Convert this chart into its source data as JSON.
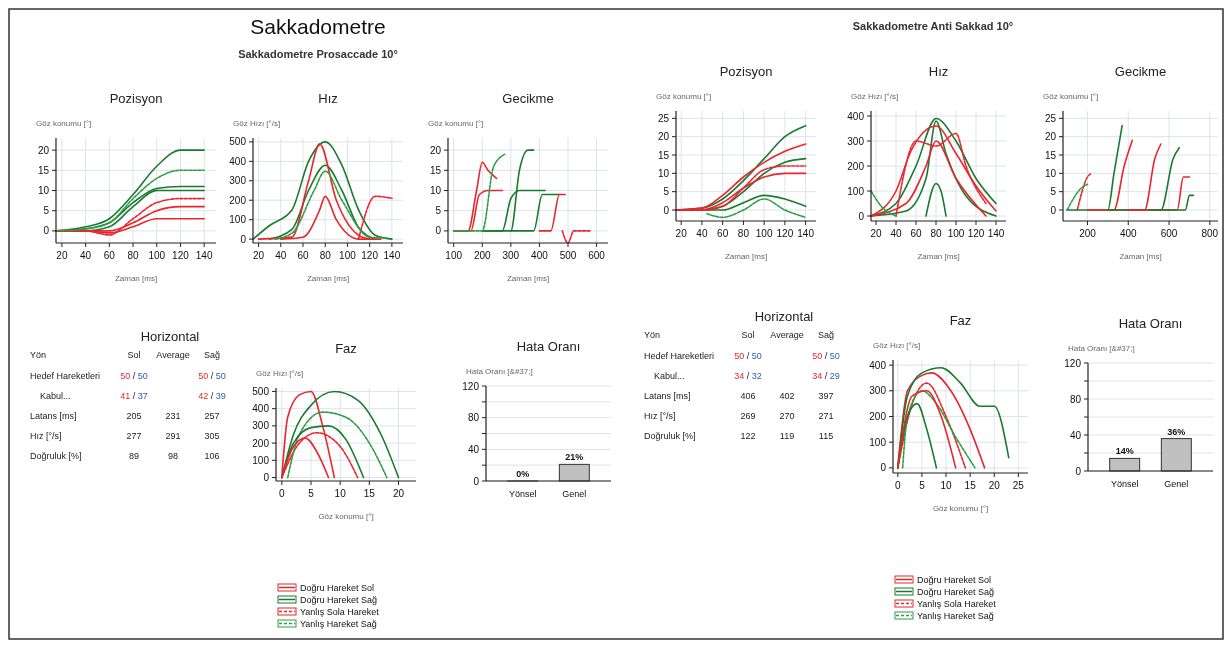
{
  "chart_data": [
    {
      "type": "other",
      "title": "Sakkadometre",
      "subtitle": "Sakkadometre Prosaccade 10°"
    },
    {
      "type": "line",
      "title": "Pozisyon",
      "xlabel": "Zaman [ms]",
      "ylabel": "Göz konumu [°]",
      "xlim": [
        15,
        150
      ],
      "xticks": [
        20,
        40,
        60,
        80,
        100,
        120,
        140
      ],
      "ylim": [
        -3,
        23
      ],
      "yticks": [
        0,
        5,
        10,
        15,
        20
      ],
      "grid": true,
      "series": [
        {
          "color": "#1a7a30",
          "x": [
            15,
            40,
            60,
            80,
            100,
            120,
            140
          ],
          "values": [
            0,
            1,
            3,
            9,
            16,
            20,
            20
          ]
        },
        {
          "color": "#1a7a30",
          "x": [
            15,
            40,
            60,
            80,
            100,
            120,
            140
          ],
          "values": [
            0,
            0.5,
            2,
            7,
            10.5,
            11,
            11
          ]
        },
        {
          "color": "#1a7a30",
          "x": [
            15,
            40,
            60,
            80,
            100,
            120,
            140
          ],
          "values": [
            0,
            0,
            1,
            6,
            10,
            10,
            10
          ]
        },
        {
          "color": "#e8262d",
          "x": [
            15,
            40,
            60,
            80,
            100,
            120,
            140
          ],
          "values": [
            0,
            0,
            0,
            2,
            5,
            6,
            6
          ]
        },
        {
          "color": "#e8262d",
          "x": [
            15,
            40,
            60,
            80,
            100,
            120,
            140
          ],
          "values": [
            0,
            0,
            -0.5,
            1,
            3,
            3,
            3
          ]
        },
        {
          "color": "#e8262d",
          "line_style": "dashed",
          "x": [
            15,
            40,
            60,
            80,
            100,
            120,
            140
          ],
          "values": [
            0,
            0,
            -1,
            3,
            7,
            8,
            8
          ]
        },
        {
          "color": "#2e9e45",
          "line_style": "dashed",
          "x": [
            15,
            40,
            60,
            80,
            100,
            120,
            140
          ],
          "values": [
            0,
            0.5,
            2,
            8,
            13,
            15,
            15
          ]
        }
      ]
    },
    {
      "type": "line",
      "title": "Hız",
      "xlabel": "Zaman [ms]",
      "ylabel": "Göz Hızı [°/s]",
      "xlim": [
        15,
        150
      ],
      "xticks": [
        20,
        40,
        60,
        80,
        100,
        120,
        140
      ],
      "ylim": [
        -20,
        520
      ],
      "yticks": [
        0,
        100,
        200,
        300,
        400,
        500
      ],
      "grid": true,
      "series": [
        {
          "color": "#1a7a30",
          "x": [
            15,
            30,
            50,
            65,
            80,
            95,
            110,
            125,
            140
          ],
          "values": [
            0,
            70,
            150,
            400,
            500,
            380,
            150,
            20,
            0
          ]
        },
        {
          "color": "#1a7a30",
          "x": [
            30,
            50,
            65,
            80,
            95,
            110,
            125
          ],
          "values": [
            0,
            50,
            250,
            380,
            250,
            60,
            0
          ]
        },
        {
          "color": "#e8262d",
          "x": [
            20,
            50,
            65,
            75,
            90,
            110,
            120
          ],
          "values": [
            0,
            10,
            300,
            490,
            200,
            20,
            0
          ]
        },
        {
          "color": "#e8262d",
          "x": [
            40,
            60,
            75,
            80,
            90,
            110,
            130
          ],
          "values": [
            0,
            10,
            150,
            220,
            100,
            0,
            0
          ]
        },
        {
          "color": "#e8262d",
          "line_style": "dashed",
          "x": [
            110,
            125,
            140
          ],
          "values": [
            0,
            220,
            210
          ]
        },
        {
          "color": "#2e9e45",
          "line_style": "dashed",
          "x": [
            35,
            50,
            70,
            80,
            95,
            120,
            135
          ],
          "values": [
            0,
            30,
            250,
            350,
            200,
            10,
            5
          ]
        }
      ]
    },
    {
      "type": "line",
      "title": "Gecikme",
      "xlabel": "Zaman [ms]",
      "ylabel": "Göz konumu [°]",
      "xlim": [
        80,
        640
      ],
      "xticks": [
        100,
        200,
        300,
        400,
        500,
        600
      ],
      "ylim": [
        -3,
        23
      ],
      "yticks": [
        0,
        5,
        10,
        15,
        20
      ],
      "grid": true,
      "series": [
        {
          "color": "#e8262d",
          "x": [
            100,
            150,
            180,
            200,
            220,
            250
          ],
          "values": [
            0,
            0,
            10,
            17,
            15,
            13
          ]
        },
        {
          "color": "#e8262d",
          "x": [
            100,
            160,
            190,
            220,
            270
          ],
          "values": [
            0,
            0,
            9,
            10,
            10
          ]
        },
        {
          "color": "#1a7a30",
          "x": [
            200,
            300,
            330,
            360,
            380
          ],
          "values": [
            0,
            0,
            15,
            20,
            20
          ]
        },
        {
          "color": "#1a7a30",
          "x": [
            200,
            270,
            300,
            330,
            420
          ],
          "values": [
            0,
            0,
            8,
            10,
            10
          ]
        },
        {
          "color": "#1a7a30",
          "x": [
            300,
            380,
            410,
            470
          ],
          "values": [
            0,
            0,
            9,
            9
          ]
        },
        {
          "color": "#e8262d",
          "x": [
            400,
            440,
            470,
            490
          ],
          "values": [
            0,
            0,
            9,
            9
          ]
        },
        {
          "color": "#e8262d",
          "line_style": "dashed",
          "x": [
            480,
            500,
            520,
            580
          ],
          "values": [
            0,
            -3,
            0,
            0
          ]
        },
        {
          "color": "#2e9e45",
          "line_style": "dashed",
          "x": [
            100,
            200,
            240,
            280
          ],
          "values": [
            0,
            0,
            16,
            19
          ]
        }
      ]
    },
    {
      "type": "other",
      "title": "Horizontal",
      "ylabel": "Yön",
      "categories": [
        "Sol",
        "Average",
        "Sağ"
      ],
      "y_categories": [
        "Hedef Hareketleri",
        "Kabul...",
        "Latans [ms]",
        "Hız [°/s]",
        "Doğruluk [%]"
      ],
      "cell_labels": [
        [
          "50 / 50",
          null,
          "50 / 50"
        ],
        [
          "41 / 37",
          null,
          "42 / 39"
        ],
        [
          "205",
          "231",
          "257"
        ],
        [
          "277",
          "291",
          "305"
        ],
        [
          "89",
          "98",
          "106"
        ]
      ]
    },
    {
      "type": "line",
      "title": "Faz",
      "xlabel": "Göz konumu [°]",
      "ylabel": "Göz Hızı [°/s]",
      "xlim": [
        -1,
        23
      ],
      "xticks": [
        0,
        5,
        10,
        15,
        20
      ],
      "ylim": [
        -20,
        520
      ],
      "yticks": [
        0,
        100,
        200,
        300,
        400,
        500
      ],
      "grid": true,
      "legend": "bottom",
      "series": [
        {
          "name": "Doğru Hareket Sol",
          "color": "#e8262d",
          "x": [
            0,
            1,
            3,
            5,
            7,
            9
          ],
          "values": [
            0,
            350,
            480,
            500,
            300,
            0
          ]
        },
        {
          "name": "Doğru Hareket Sağ",
          "color": "#1a7a30",
          "x": [
            0,
            2,
            5,
            9,
            13,
            17,
            20
          ],
          "values": [
            0,
            250,
            420,
            500,
            450,
            250,
            0
          ]
        },
        {
          "name": "Yanlış Sola Hareket",
          "color": "#e8262d",
          "line_style": "dashed",
          "x": [
            0,
            3,
            6,
            10,
            13
          ],
          "values": [
            0,
            200,
            260,
            180,
            0
          ]
        },
        {
          "name": "Yanlış Hareket Sağ",
          "color": "#2e9e45",
          "line_style": "dashed",
          "x": [
            1,
            3,
            7,
            11,
            15,
            18
          ],
          "values": [
            0,
            250,
            380,
            350,
            200,
            0
          ]
        },
        {
          "color": "#1a7a30",
          "x": [
            0,
            2,
            5,
            8,
            11,
            14
          ],
          "values": [
            0,
            200,
            290,
            300,
            220,
            0
          ]
        },
        {
          "color": "#e8262d",
          "x": [
            0,
            2,
            4,
            6,
            8
          ],
          "values": [
            0,
            180,
            230,
            150,
            0
          ]
        }
      ]
    },
    {
      "type": "bar",
      "title": "Hata Oranı",
      "ylabel": "Hata Oranı [&#37;]",
      "categories": [
        "Yönsel",
        "Genel"
      ],
      "values": [
        0,
        21
      ],
      "value_labels": [
        "0%",
        "21%"
      ],
      "color": "#c0c0c0",
      "ylim": [
        0,
        120
      ],
      "yticks": [
        0,
        {
          "value": 20,
          "label": null
        },
        40,
        {
          "value": 60,
          "label": null
        },
        80,
        {
          "value": 100,
          "label": null
        },
        120
      ],
      "grid": "y"
    },
    {
      "type": "other",
      "subtitle": "Sakkadometre Anti Sakkad 10°"
    },
    {
      "type": "line",
      "title": "Pozisyon",
      "xlabel": "Zaman [ms]",
      "ylabel": "Göz konumu [°]",
      "xlim": [
        15,
        150
      ],
      "xticks": [
        20,
        40,
        60,
        80,
        100,
        120,
        140
      ],
      "ylim": [
        -3,
        27
      ],
      "yticks": [
        0,
        5,
        10,
        15,
        20,
        25
      ],
      "grid": true,
      "series": [
        {
          "color": "#1a7a30",
          "x": [
            15,
            40,
            60,
            80,
            100,
            120,
            140
          ],
          "values": [
            0,
            0.5,
            3,
            8,
            14,
            20,
            23
          ]
        },
        {
          "color": "#1a7a30",
          "x": [
            15,
            40,
            60,
            80,
            100,
            120,
            140
          ],
          "values": [
            0,
            0,
            1,
            5,
            10,
            13,
            14
          ]
        },
        {
          "color": "#1a7a30",
          "x": [
            15,
            40,
            60,
            80,
            100,
            120,
            140
          ],
          "values": [
            0,
            0,
            0,
            2,
            4,
            3,
            1
          ]
        },
        {
          "color": "#e8262d",
          "x": [
            15,
            40,
            60,
            80,
            100,
            120,
            140
          ],
          "values": [
            0,
            0.5,
            4,
            9,
            13,
            16,
            18
          ]
        },
        {
          "color": "#e8262d",
          "x": [
            15,
            40,
            60,
            80,
            100,
            120,
            140
          ],
          "values": [
            0,
            0,
            2,
            6,
            9,
            10,
            10
          ]
        },
        {
          "color": "#e8262d",
          "line_style": "dashed",
          "x": [
            15,
            40,
            60,
            80,
            100,
            120,
            140
          ],
          "values": [
            0,
            0,
            1,
            6,
            11,
            12,
            12
          ]
        },
        {
          "color": "#2e9e45",
          "line_style": "dashed",
          "x": [
            45,
            60,
            80,
            100,
            120,
            140
          ],
          "values": [
            -1,
            -2,
            0,
            3,
            0,
            -2
          ]
        }
      ]
    },
    {
      "type": "line",
      "title": "Hız",
      "xlabel": "Zaman [ms]",
      "ylabel": "Göz Hızı [°/s]",
      "xlim": [
        15,
        150
      ],
      "xticks": [
        20,
        40,
        60,
        80,
        100,
        120,
        140
      ],
      "ylim": [
        -20,
        420
      ],
      "yticks": [
        0,
        100,
        200,
        300,
        400
      ],
      "grid": true,
      "series": [
        {
          "color": "#1a7a30",
          "x": [
            15,
            40,
            60,
            80,
            100,
            120,
            140
          ],
          "values": [
            0,
            50,
            200,
            390,
            300,
            150,
            50
          ]
        },
        {
          "color": "#1a7a30",
          "x": [
            15,
            50,
            70,
            80,
            90,
            110,
            140
          ],
          "values": [
            0,
            20,
            150,
            380,
            250,
            80,
            0
          ]
        },
        {
          "color": "#1a7a30",
          "x": [
            70,
            80,
            85,
            90
          ],
          "values": [
            0,
            130,
            100,
            0
          ]
        },
        {
          "color": "#e8262d",
          "x": [
            15,
            40,
            55,
            80,
            100,
            120,
            140
          ],
          "values": [
            0,
            100,
            260,
            360,
            250,
            120,
            20
          ]
        },
        {
          "color": "#e8262d",
          "x": [
            15,
            50,
            70,
            80,
            100,
            130
          ],
          "values": [
            0,
            50,
            200,
            300,
            150,
            0
          ]
        },
        {
          "color": "#e8262d",
          "line_style": "dashed",
          "x": [
            40,
            60,
            80,
            100,
            110,
            130
          ],
          "values": [
            0,
            300,
            280,
            330,
            200,
            50
          ]
        },
        {
          "color": "#2e9e45",
          "line_style": "dashed",
          "x": [
            15,
            25,
            40
          ],
          "values": [
            100,
            40,
            0
          ]
        }
      ]
    },
    {
      "type": "line",
      "title": "Gecikme",
      "xlabel": "Zaman [ms]",
      "ylabel": "Göz konumu [°]",
      "xlim": [
        80,
        840
      ],
      "xticks": [
        200,
        400,
        600,
        800
      ],
      "ylim": [
        -3,
        27
      ],
      "yticks": [
        0,
        5,
        10,
        15,
        20,
        25
      ],
      "grid": true,
      "series": [
        {
          "color": "#1a7a30",
          "x": [
            100,
            300,
            330,
            370
          ],
          "values": [
            0,
            0,
            10,
            23
          ]
        },
        {
          "color": "#e8262d",
          "x": [
            200,
            330,
            380,
            420
          ],
          "values": [
            0,
            0,
            12,
            19
          ]
        },
        {
          "color": "#e8262d",
          "x": [
            300,
            480,
            530,
            560
          ],
          "values": [
            0,
            0,
            14,
            18
          ]
        },
        {
          "color": "#1a7a30",
          "x": [
            300,
            560,
            620,
            650
          ],
          "values": [
            0,
            0,
            14,
            17
          ]
        },
        {
          "color": "#e8262d",
          "x": [
            400,
            640,
            670,
            700
          ],
          "values": [
            0,
            0,
            9,
            9
          ]
        },
        {
          "color": "#1a7a30",
          "x": [
            500,
            680,
            700,
            720
          ],
          "values": [
            0,
            0,
            4,
            4
          ]
        },
        {
          "color": "#e8262d",
          "line_style": "dashed",
          "x": [
            150,
            200,
            220
          ],
          "values": [
            0,
            9,
            10
          ]
        },
        {
          "color": "#2e9e45",
          "line_style": "dashed",
          "x": [
            100,
            170,
            200
          ],
          "values": [
            0,
            6,
            7
          ]
        }
      ]
    },
    {
      "type": "other",
      "title": "Horizontal",
      "ylabel": "Yön",
      "categories": [
        "Sol",
        "Average",
        "Sağ"
      ],
      "y_categories": [
        "Hedef Hareketleri",
        "Kabul...",
        "Latans [ms]",
        "Hız [°/s]",
        "Doğruluk [%]"
      ],
      "cell_labels": [
        [
          "50 / 50",
          null,
          "50 / 50"
        ],
        [
          "34 / 32",
          null,
          "34 / 29"
        ],
        [
          "406",
          "402",
          "397"
        ],
        [
          "269",
          "270",
          "271"
        ],
        [
          "122",
          "119",
          "115"
        ]
      ]
    },
    {
      "type": "line",
      "title": "Faz",
      "xlabel": "Göz konumu [°]",
      "ylabel": "Göz Hızı [°/s]",
      "xlim": [
        -1,
        27
      ],
      "xticks": [
        0,
        5,
        10,
        15,
        20,
        25
      ],
      "ylim": [
        -20,
        420
      ],
      "yticks": [
        0,
        100,
        200,
        300,
        400
      ],
      "grid": true,
      "legend": "bottom",
      "series": [
        {
          "name": "Doğru Hareket Sol",
          "color": "#e8262d",
          "x": [
            0,
            2,
            5,
            7,
            11,
            15,
            18
          ],
          "values": [
            0,
            300,
            360,
            370,
            300,
            150,
            0
          ]
        },
        {
          "name": "Doğru Hareket Sağ",
          "color": "#1a7a30",
          "x": [
            0,
            2,
            5,
            9,
            13,
            17,
            20,
            23
          ],
          "values": [
            0,
            280,
            370,
            390,
            330,
            240,
            240,
            40
          ]
        },
        {
          "name": "Yanlış Sola Hareket",
          "color": "#e8262d",
          "line_style": "dashed",
          "x": [
            0,
            3,
            6,
            10,
            14
          ],
          "values": [
            0,
            250,
            330,
            200,
            0
          ]
        },
        {
          "name": "Yanlış Hareket Sağ",
          "color": "#2e9e45",
          "line_style": "dashed",
          "x": [
            1,
            2,
            5,
            8,
            12,
            16
          ],
          "values": [
            0,
            200,
            300,
            250,
            120,
            0
          ]
        },
        {
          "color": "#1a7a30",
          "x": [
            0,
            2,
            4,
            6,
            8
          ],
          "values": [
            0,
            200,
            250,
            150,
            0
          ]
        },
        {
          "color": "#e8262d",
          "x": [
            0,
            3,
            6,
            9,
            12
          ],
          "values": [
            0,
            280,
            300,
            200,
            0
          ]
        }
      ]
    },
    {
      "type": "bar",
      "title": "Hata Oranı",
      "ylabel": "Hata Oranı [&#37;]",
      "categories": [
        "Yönsel",
        "Genel"
      ],
      "values": [
        14,
        36
      ],
      "value_labels": [
        "14%",
        "36%"
      ],
      "color": "#c0c0c0",
      "ylim": [
        0,
        120
      ],
      "yticks": [
        0,
        {
          "value": 20,
          "label": null
        },
        40,
        {
          "value": 60,
          "label": null
        },
        80,
        {
          "value": 100,
          "label": null
        },
        120
      ],
      "grid": "y"
    }
  ]
}
